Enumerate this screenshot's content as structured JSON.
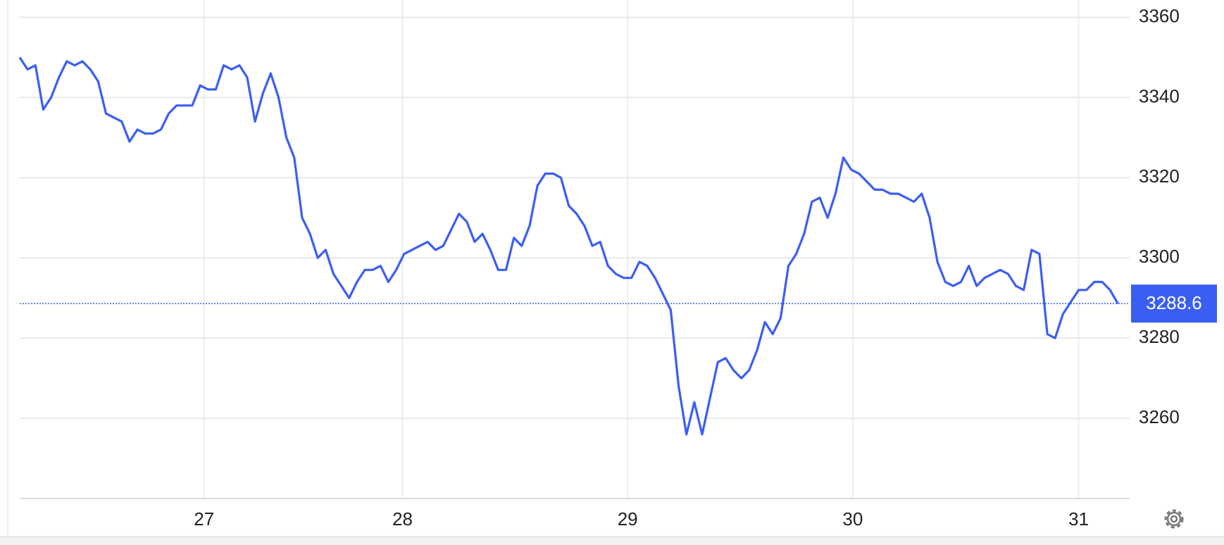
{
  "chart_data": {
    "type": "line",
    "color": "#3b5ef2",
    "grid": true,
    "xlim": [
      0,
      141.5
    ],
    "xticks": [
      {
        "value": 23.5,
        "label": "27"
      },
      {
        "value": 48.8,
        "label": "28"
      },
      {
        "value": 77.5,
        "label": "29"
      },
      {
        "value": 106.2,
        "label": "30"
      },
      {
        "value": 135,
        "label": "31"
      }
    ],
    "ylim": [
      3240,
      3364.3
    ],
    "yticks": [
      3260,
      3280,
      3300,
      3320,
      3340,
      3360
    ],
    "current_label": "3288.6",
    "values": [
      3350,
      3347,
      3348,
      3337,
      3340,
      3345,
      3349,
      3348,
      3349,
      3347,
      3344,
      3336,
      3335,
      3334,
      3329,
      3332,
      3331,
      3331,
      3332,
      3336,
      3338,
      3338,
      3338,
      3343,
      3342,
      3342,
      3348,
      3347,
      3348,
      3345,
      3334,
      3341,
      3346,
      3340,
      3330,
      3325,
      3310,
      3306,
      3300,
      3302,
      3296,
      3293,
      3290,
      3294,
      3297,
      3297,
      3298,
      3294,
      3297,
      3301,
      3302,
      3303,
      3304,
      3302,
      3303,
      3307,
      3311,
      3309,
      3304,
      3306,
      3302,
      3297,
      3297,
      3305,
      3303,
      3308,
      3318,
      3321,
      3321,
      3320,
      3313,
      3311,
      3308,
      3303,
      3304,
      3298,
      3296,
      3295,
      3295,
      3299,
      3298,
      3295,
      3291,
      3287,
      3268,
      3256,
      3264,
      3256,
      3265,
      3274,
      3275,
      3272,
      3270,
      3272,
      3277,
      3284,
      3281,
      3285,
      3298,
      3301,
      3306,
      3314,
      3315,
      3310,
      3316,
      3325,
      3322,
      3321,
      3319,
      3317,
      3317,
      3316,
      3316,
      3315,
      3314,
      3316,
      3310,
      3299,
      3294,
      3293,
      3294,
      3298,
      3293,
      3295,
      3296,
      3297,
      3296,
      3293,
      3292,
      3302,
      3301,
      3281,
      3280,
      3286,
      3289,
      3292,
      3292,
      3294,
      3294,
      3292,
      3288.6
    ]
  }
}
